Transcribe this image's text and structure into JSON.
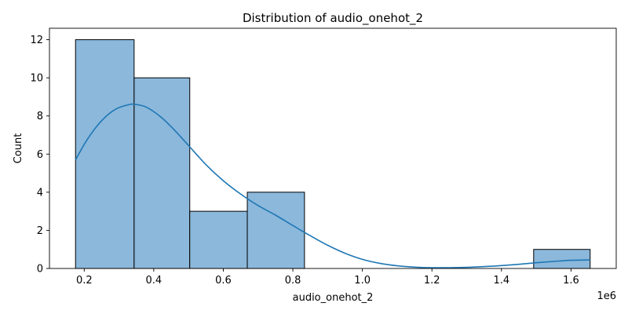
{
  "chart_data": {
    "type": "bar",
    "title": "Distribution of audio_onehot_2",
    "xlabel": "audio_onehot_2",
    "ylabel": "Count",
    "x_offset_label": "1e6",
    "xlim": [
      0.1,
      1.73
    ],
    "ylim": [
      0,
      12.6
    ],
    "x_ticks": [
      {
        "value": 0.2,
        "label": "0.2"
      },
      {
        "value": 0.4,
        "label": "0.4"
      },
      {
        "value": 0.6,
        "label": "0.6"
      },
      {
        "value": 0.8,
        "label": "0.8"
      },
      {
        "value": 1.0,
        "label": "1.0"
      },
      {
        "value": 1.2,
        "label": "1.2"
      },
      {
        "value": 1.4,
        "label": "1.4"
      },
      {
        "value": 1.6,
        "label": "1.6"
      }
    ],
    "y_ticks": [
      {
        "value": 0,
        "label": "0"
      },
      {
        "value": 2,
        "label": "2"
      },
      {
        "value": 4,
        "label": "4"
      },
      {
        "value": 6,
        "label": "6"
      },
      {
        "value": 8,
        "label": "8"
      },
      {
        "value": 10,
        "label": "10"
      },
      {
        "value": 12,
        "label": "12"
      }
    ],
    "bins": [
      {
        "x0": 0.175,
        "x1": 0.3435,
        "count": 12
      },
      {
        "x0": 0.3435,
        "x1": 0.5035,
        "count": 10
      },
      {
        "x0": 0.5035,
        "x1": 0.669,
        "count": 3
      },
      {
        "x0": 0.669,
        "x1": 0.8335,
        "count": 4
      },
      {
        "x0": 0.8335,
        "x1": 0.998,
        "count": 0
      },
      {
        "x0": 0.998,
        "x1": 1.163,
        "count": 0
      },
      {
        "x0": 1.163,
        "x1": 1.3275,
        "count": 0
      },
      {
        "x0": 1.3275,
        "x1": 1.4925,
        "count": 0
      },
      {
        "x0": 1.4925,
        "x1": 1.655,
        "count": 1
      }
    ],
    "kde": {
      "x": [
        0.175,
        0.21,
        0.25,
        0.29,
        0.33,
        0.35,
        0.38,
        0.42,
        0.46,
        0.5,
        0.55,
        0.6,
        0.65,
        0.7,
        0.75,
        0.8,
        0.85,
        0.9,
        0.95,
        1.0,
        1.05,
        1.1,
        1.15,
        1.2,
        1.25,
        1.3,
        1.35,
        1.4,
        1.45,
        1.5,
        1.55,
        1.6,
        1.655
      ],
      "y": [
        5.7,
        6.8,
        7.75,
        8.35,
        8.6,
        8.6,
        8.45,
        7.95,
        7.25,
        6.45,
        5.45,
        4.6,
        3.9,
        3.3,
        2.8,
        2.25,
        1.72,
        1.22,
        0.8,
        0.48,
        0.27,
        0.14,
        0.07,
        0.04,
        0.04,
        0.06,
        0.1,
        0.15,
        0.22,
        0.3,
        0.37,
        0.43,
        0.45
      ]
    }
  }
}
